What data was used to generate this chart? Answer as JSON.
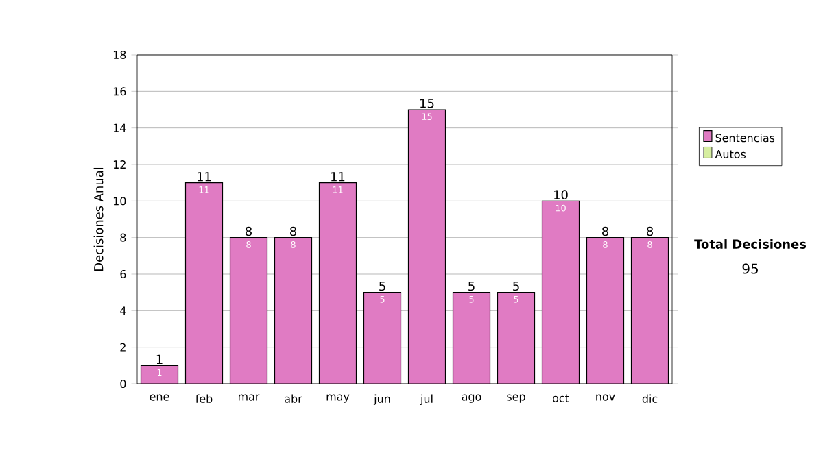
{
  "chart_data": {
    "type": "bar",
    "stacked": true,
    "ylabel": "Decisiones Anual",
    "categories": [
      "ene",
      "feb",
      "mar",
      "abr",
      "may",
      "jun",
      "jul",
      "ago",
      "sep",
      "oct",
      "nov",
      "dic"
    ],
    "series": [
      {
        "name": "Sentencias",
        "color": "#e07bc3",
        "values": [
          1,
          11,
          8,
          8,
          11,
          5,
          15,
          5,
          5,
          10,
          8,
          8
        ]
      },
      {
        "name": "Autos",
        "color": "#d6eea0",
        "values": [
          null,
          null,
          null,
          null,
          null,
          null,
          null,
          null,
          null,
          null,
          null,
          null
        ]
      }
    ],
    "ylim": [
      0,
      18
    ],
    "yticks": [
      0,
      2,
      4,
      6,
      8,
      10,
      12,
      14,
      16,
      18
    ],
    "grid": "y",
    "legend": "right",
    "data_labels": true,
    "totals": [
      "1",
      "11",
      "8",
      "8",
      "11",
      "5",
      "15",
      "5",
      "5",
      "10",
      "8",
      "8"
    ],
    "annotations": [
      "Total Decisiones",
      "95"
    ]
  }
}
